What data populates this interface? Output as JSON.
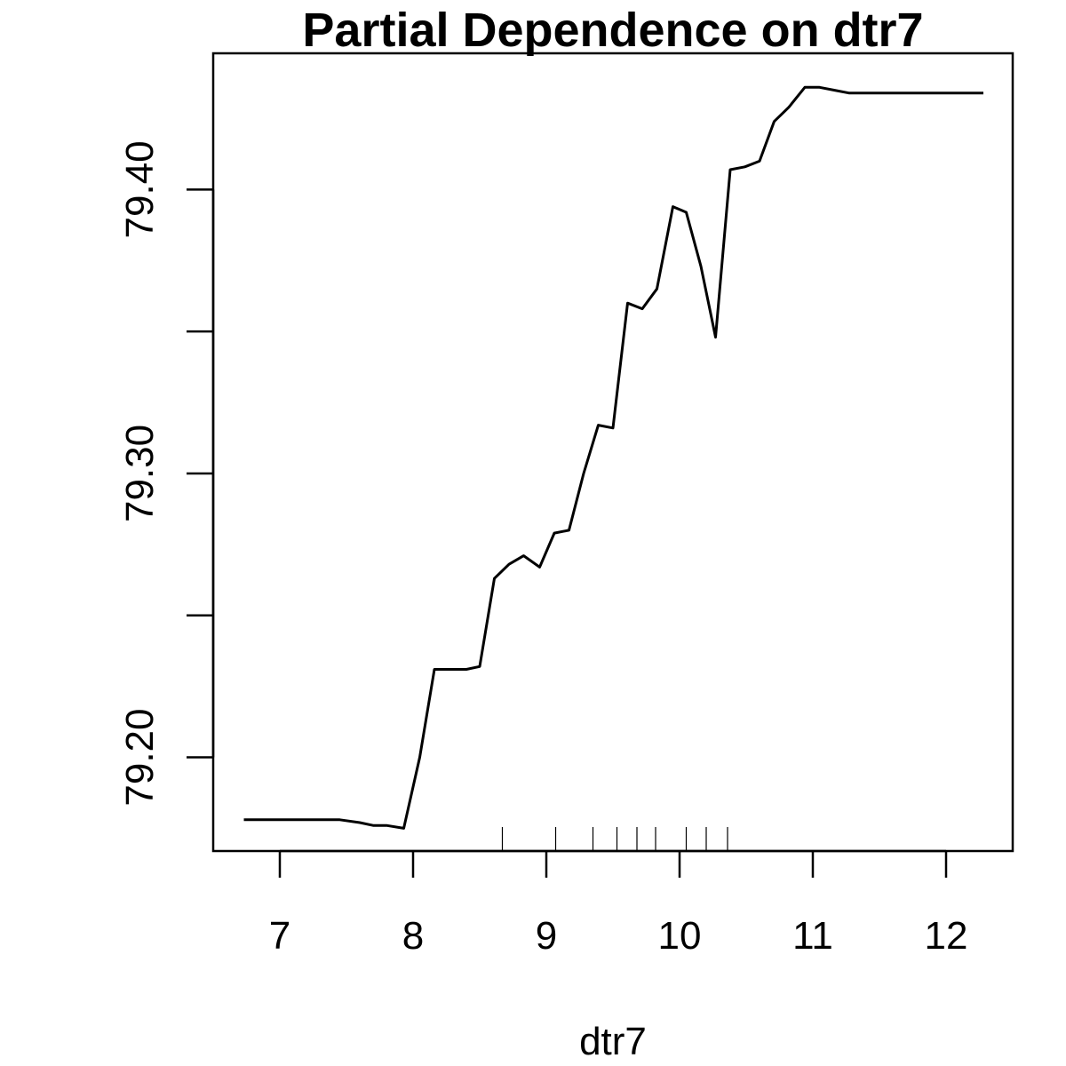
{
  "chart_data": {
    "type": "line",
    "title": "Partial Dependence on dtr7",
    "xlabel": "dtr7",
    "ylabel": "",
    "xlim": [
      6.5,
      12.5
    ],
    "ylim": [
      79.167,
      79.448
    ],
    "x_ticks": [
      7,
      8,
      9,
      10,
      11,
      12
    ],
    "x_tick_labels": [
      "7",
      "8",
      "9",
      "10",
      "11",
      "12"
    ],
    "y_ticks": [
      79.2,
      79.25,
      79.3,
      79.35,
      79.4
    ],
    "y_tick_labels": [
      "79.20",
      "",
      "79.30",
      "",
      "79.40"
    ],
    "grid": false,
    "series": [
      {
        "x": [
          6.73,
          7.0,
          7.3,
          7.45,
          7.6,
          7.7,
          7.8,
          7.93,
          8.05,
          8.16,
          8.28,
          8.4,
          8.5,
          8.61,
          8.72,
          8.83,
          8.95,
          9.06,
          9.17,
          9.28,
          9.39,
          9.5,
          9.61,
          9.72,
          9.83,
          9.95,
          10.05,
          10.16,
          10.27,
          10.38,
          10.49,
          10.6,
          10.71,
          10.82,
          10.94,
          11.05,
          11.16,
          11.27,
          11.38,
          11.6,
          12.28
        ],
        "y": [
          79.178,
          79.178,
          79.178,
          79.178,
          79.177,
          79.176,
          79.176,
          79.175,
          79.2,
          79.231,
          79.231,
          79.231,
          79.232,
          79.263,
          79.268,
          79.271,
          79.267,
          79.279,
          79.28,
          79.3,
          79.317,
          79.316,
          79.36,
          79.358,
          79.365,
          79.394,
          79.392,
          79.373,
          79.348,
          79.407,
          79.408,
          79.41,
          79.424,
          79.429,
          79.436,
          79.436,
          79.435,
          79.434,
          79.434,
          79.434,
          79.434
        ]
      }
    ],
    "rug": [
      8.67,
      9.07,
      9.35,
      9.53,
      9.68,
      9.82,
      10.05,
      10.2,
      10.36
    ]
  }
}
